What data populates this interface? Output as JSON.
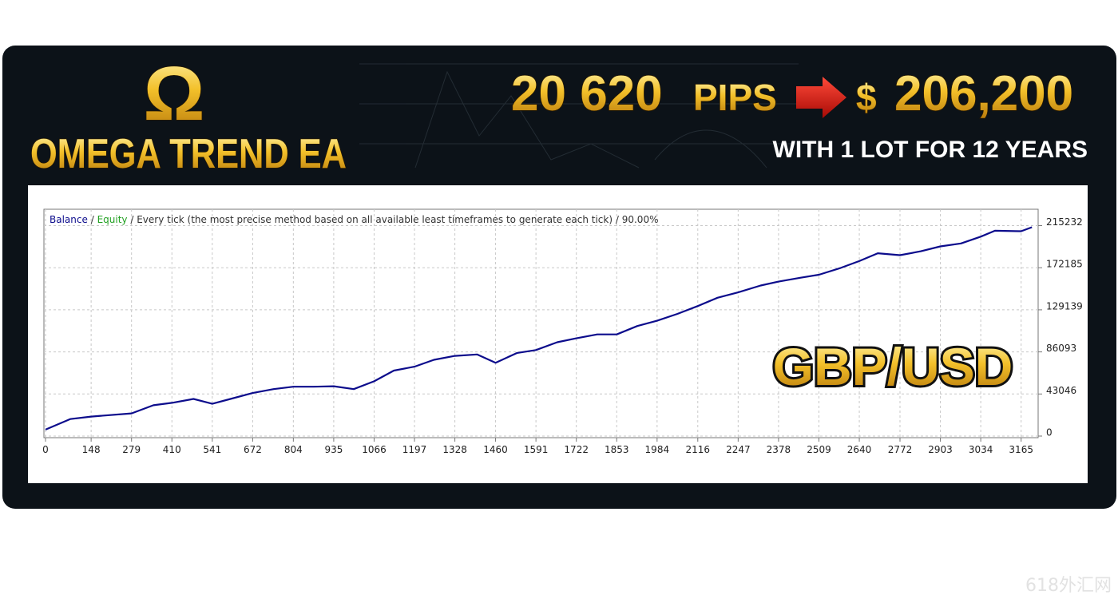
{
  "banner": {
    "logo_symbol": "Ω",
    "brand": "OMEGA TREND EA",
    "pips_value": "20 620",
    "pips_unit": "PIPS",
    "currency_sign": "$",
    "money_value": "206,200",
    "tagline": "WITH 1 LOT FOR 12 YEARS",
    "pair": "GBP/USD",
    "watermark": "618外汇网"
  },
  "chart_data": {
    "type": "line",
    "legend_separator": "/",
    "equity": {
      "name": "Equity",
      "color": "#22a022"
    },
    "subtitle": "Every tick (the most precise method based on all available least timeframes to generate each tick)",
    "quality": "90.00%",
    "x": [
      0,
      80,
      148,
      279,
      350,
      410,
      480,
      541,
      600,
      672,
      740,
      804,
      870,
      935,
      1000,
      1066,
      1130,
      1197,
      1260,
      1328,
      1400,
      1460,
      1530,
      1591,
      1660,
      1722,
      1790,
      1853,
      1920,
      1984,
      2050,
      2116,
      2180,
      2247,
      2320,
      2378,
      2450,
      2509,
      2580,
      2640,
      2700,
      2772,
      2840,
      2903,
      2970,
      3034,
      3080,
      3165,
      3200
    ],
    "series": [
      {
        "name": "Balance",
        "color": "#0c0c8c",
        "values": [
          6600,
          17400,
          19900,
          23200,
          31500,
          34000,
          38000,
          33000,
          38000,
          44000,
          48000,
          50500,
          50500,
          51000,
          48000,
          56000,
          67000,
          71000,
          78000,
          82000,
          83500,
          75000,
          85000,
          88000,
          96000,
          100000,
          104000,
          104000,
          112600,
          118000,
          125000,
          133000,
          141500,
          147000,
          154000,
          158000,
          162000,
          165000,
          172000,
          179000,
          187000,
          185000,
          189000,
          194000,
          197000,
          204000,
          210000,
          209500,
          213600
        ]
      }
    ],
    "xlim": [
      0,
      3215
    ],
    "ylim": [
      0,
      232000
    ],
    "xticks": [
      0,
      148,
      279,
      410,
      541,
      672,
      804,
      935,
      1066,
      1197,
      1328,
      1460,
      1591,
      1722,
      1853,
      1984,
      2116,
      2247,
      2378,
      2509,
      2640,
      2772,
      2903,
      3034,
      3165
    ],
    "yticks": [
      0,
      43046,
      86093,
      129139,
      172185,
      215232
    ],
    "grid": true
  }
}
